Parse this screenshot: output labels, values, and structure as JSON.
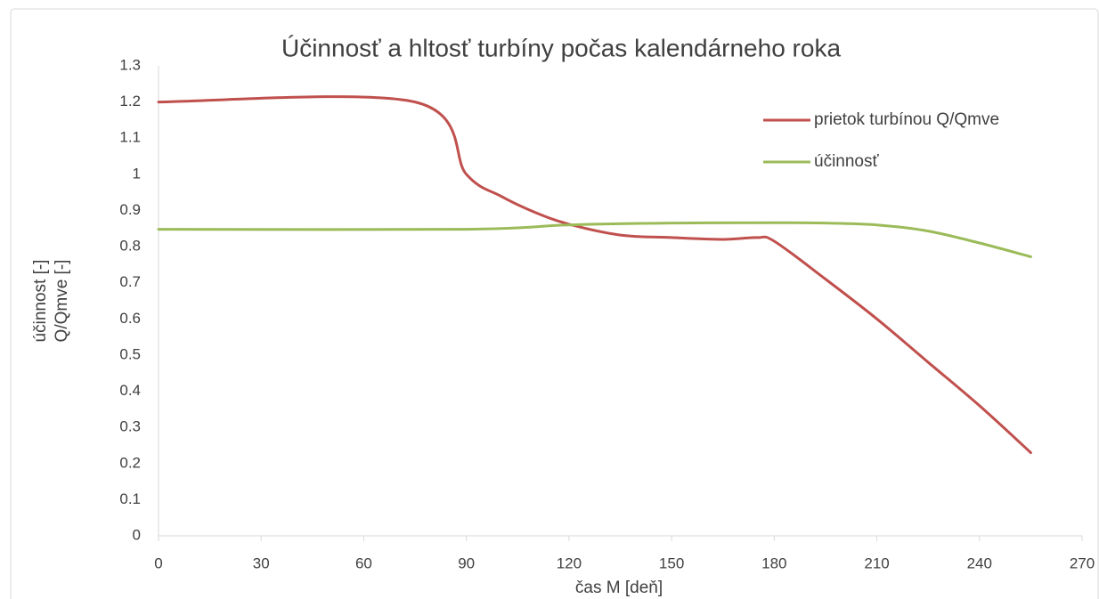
{
  "chart_data": {
    "type": "line",
    "title": "Účinnosť a hltosť turbíny počas kalendárneho roka",
    "x_label": "čas M  [deň]",
    "y_label": [
      "účinnost [-]",
      "Q/Qmve [-]"
    ],
    "xlim": [
      0,
      270
    ],
    "xticks": [
      0,
      30,
      60,
      90,
      120,
      150,
      180,
      210,
      240,
      270
    ],
    "ylim": [
      0,
      1.3
    ],
    "yticks": [
      0,
      0.1,
      0.2,
      0.3,
      0.4,
      0.5,
      0.6,
      0.7,
      0.8,
      0.9,
      1,
      1.1,
      1.2,
      1.3
    ],
    "grid": false,
    "legend": "upper right",
    "series": [
      {
        "name": "prietok turbínou Q/Qmve",
        "color": "#c0504d",
        "x": [
          0,
          75,
          90,
          100,
          110,
          120,
          135,
          150,
          165,
          175,
          180,
          195,
          210,
          225,
          240,
          255
        ],
        "values": [
          1.2,
          1.2,
          1.0,
          0.94,
          0.895,
          0.862,
          0.832,
          0.825,
          0.82,
          0.825,
          0.815,
          0.71,
          0.6,
          0.48,
          0.36,
          0.23
        ]
      },
      {
        "name": "účinnosť",
        "color": "#9bbb59",
        "x": [
          0,
          90,
          120,
          150,
          180,
          195,
          210,
          225,
          240,
          255
        ],
        "values": [
          0.848,
          0.848,
          0.86,
          0.865,
          0.866,
          0.865,
          0.86,
          0.843,
          0.81,
          0.772
        ]
      }
    ]
  }
}
